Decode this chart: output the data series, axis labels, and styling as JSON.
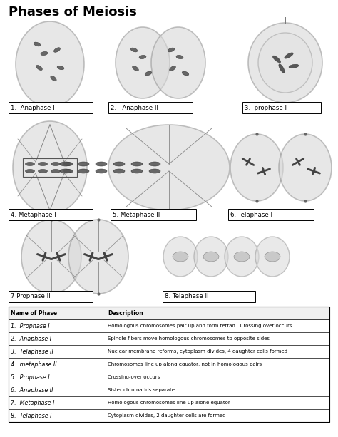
{
  "title": "Phases of Meiosis",
  "title_fontsize": 13,
  "title_fontweight": "bold",
  "background_color": "#ffffff",
  "table_headers": [
    "Name of Phase",
    "Description"
  ],
  "table_rows": [
    [
      "1.  Prophase I",
      "Homologous chromosomes pair up and form tetrad.  Crossing over occurs"
    ],
    [
      "2.  Anaphase I",
      "Spindle fibers move homologous chromosomes to opposite sides"
    ],
    [
      "3.  Telaphase II",
      "Nuclear membrane reforms, cytoplasm divides, 4 daughter cells formed"
    ],
    [
      "4.  metaphase II",
      "Chromosomes line up along equator, not in homologous pairs"
    ],
    [
      "5.  Prophase I",
      "Crossing-over occurs"
    ],
    [
      "6.  Anaphase II",
      "Sister chromatids separate"
    ],
    [
      "7.  Metaphase I",
      "Homologous chromosomes line up alone equator"
    ],
    [
      "8.  Telaphase I",
      "Cytoplasm divides, 2 daughter cells are formed"
    ]
  ],
  "cell_color": "#d8d8d8",
  "cell_edge_color": "#999999"
}
